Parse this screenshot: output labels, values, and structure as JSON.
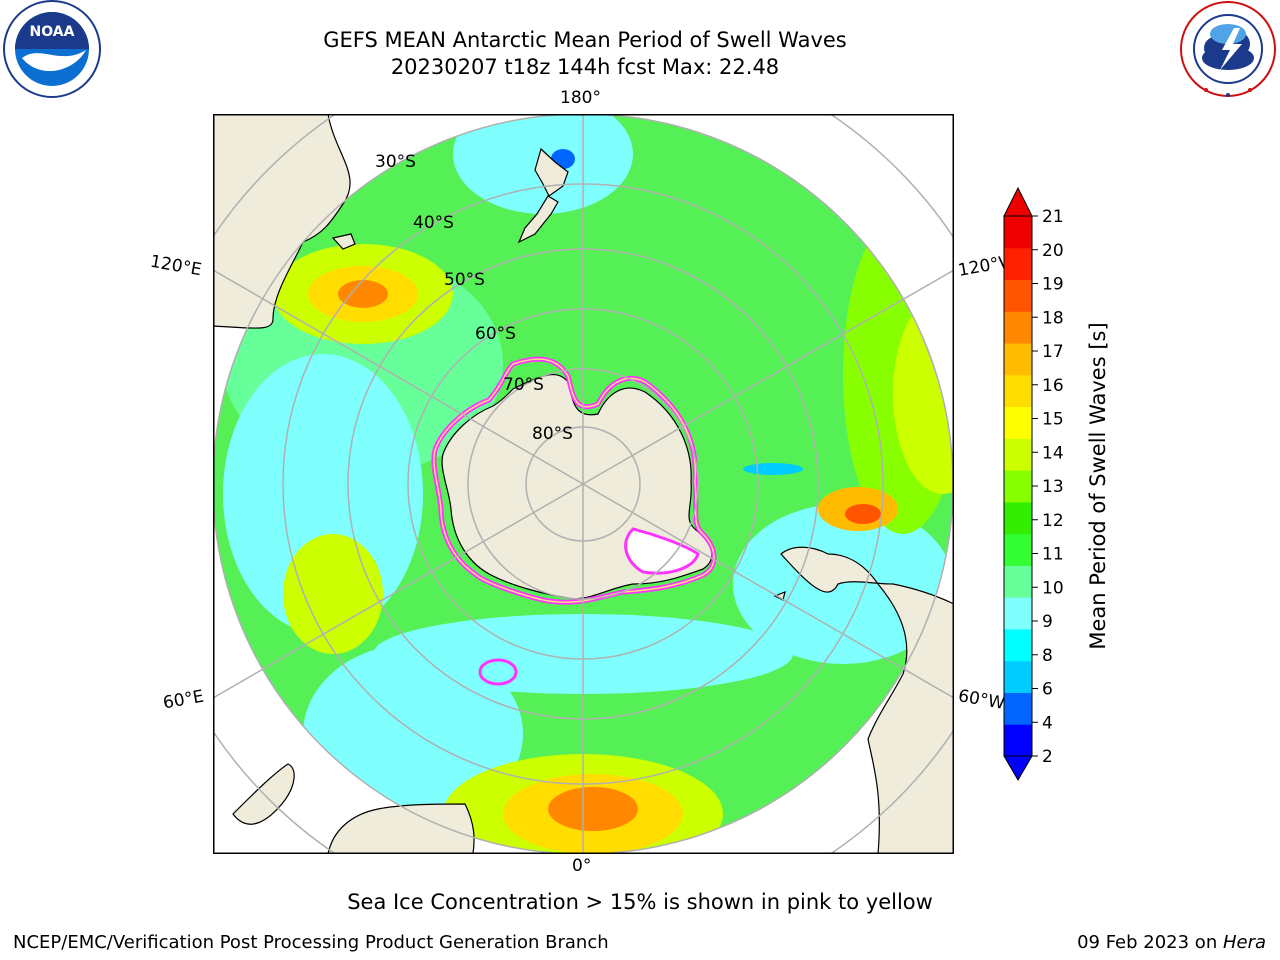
{
  "header": {
    "title_line1": "GEFS MEAN Antarctic Mean Period of Swell Waves",
    "title_line2": "20230207 t18z 144h fcst   Max: 22.48"
  },
  "logos": {
    "left": "noaa-logo",
    "right": "national-weather-service-logo"
  },
  "map": {
    "projection": "south-polar-stereographic",
    "longitude_labels": {
      "top": "180°",
      "bottom": "0°",
      "left_upper": "120°E",
      "left_lower": "60°E",
      "right_upper": "120°W",
      "right_lower": "60°W"
    },
    "latitude_labels": [
      "30°S",
      "40°S",
      "50°S",
      "60°S",
      "70°S",
      "80°S"
    ],
    "land_color": "#efecdc",
    "ocean_outside_color": "#ffffff",
    "gridline_color": "#b0b0b0"
  },
  "colorbar": {
    "label": "Mean Period of Swell Waves [s]",
    "ticks": [
      "2",
      "4",
      "6",
      "8",
      "9",
      "10",
      "11",
      "12",
      "13",
      "14",
      "15",
      "16",
      "17",
      "18",
      "19",
      "20",
      "21"
    ],
    "colors": [
      "#0000ff",
      "#0066ff",
      "#00ccff",
      "#00ffff",
      "#80ffff",
      "#66ff99",
      "#33ff33",
      "#33ee00",
      "#88ff00",
      "#ccff00",
      "#ffff00",
      "#ffdd00",
      "#ffbb00",
      "#ff8800",
      "#ff5500",
      "#ff2200",
      "#ee0000"
    ],
    "extend": "both"
  },
  "caption": "Sea Ice Concentration > 15% is shown in pink to yellow",
  "footer": {
    "left": "NCEP/EMC/Verification Post Processing Product Generation Branch",
    "date": "09 Feb 2023 on ",
    "machine": "Hera"
  }
}
